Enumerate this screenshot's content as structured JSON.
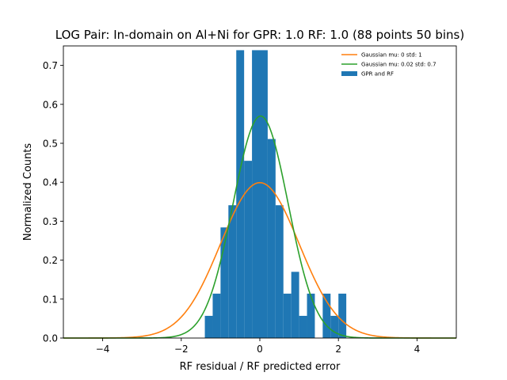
{
  "chart_data": {
    "type": "bar",
    "title": "LOG Pair: In-domain on Al+Ni for GPR: 1.0 RF: 1.0 (88 points 50 bins)",
    "xlabel": "RF residual / RF predicted error",
    "ylabel": "Normalized Counts",
    "xlim": [
      -5.0,
      5.0
    ],
    "ylim": [
      0.0,
      0.75
    ],
    "xticks": [
      -4,
      -2,
      0,
      2,
      4
    ],
    "xtick_labels": [
      "−4",
      "−2",
      "0",
      "2",
      "4"
    ],
    "yticks": [
      0.0,
      0.1,
      0.2,
      0.3,
      0.4,
      0.5,
      0.6,
      0.7
    ],
    "ytick_labels": [
      "0.0",
      "0.1",
      "0.2",
      "0.3",
      "0.4",
      "0.5",
      "0.6",
      "0.7"
    ],
    "grid": false,
    "legend_position": "top-right",
    "histogram": {
      "name": "GPR and RF",
      "color": "#1f77b4",
      "bin_width": 0.2,
      "bins": [
        {
          "left": -1.4,
          "value": 0.057
        },
        {
          "left": -1.2,
          "value": 0.114
        },
        {
          "left": -1.0,
          "value": 0.284
        },
        {
          "left": -0.8,
          "value": 0.341
        },
        {
          "left": -0.6,
          "value": 0.739
        },
        {
          "left": -0.4,
          "value": 0.455
        },
        {
          "left": -0.2,
          "value": 0.739
        },
        {
          "left": 0.0,
          "value": 0.739
        },
        {
          "left": 0.2,
          "value": 0.511
        },
        {
          "left": 0.4,
          "value": 0.341
        },
        {
          "left": 0.6,
          "value": 0.114
        },
        {
          "left": 0.8,
          "value": 0.17
        },
        {
          "left": 1.0,
          "value": 0.057
        },
        {
          "left": 1.2,
          "value": 0.114
        },
        {
          "left": 1.6,
          "value": 0.114
        },
        {
          "left": 1.8,
          "value": 0.057
        },
        {
          "left": 2.0,
          "value": 0.114
        }
      ]
    },
    "curves": [
      {
        "name": "Gaussian mu: 0 std: 1",
        "mu": 0,
        "std": 1,
        "color": "#ff7f0e"
      },
      {
        "name": "Gaussian mu: 0.02 std: 0.7",
        "mu": 0.02,
        "std": 0.7,
        "color": "#2ca02c"
      }
    ]
  }
}
